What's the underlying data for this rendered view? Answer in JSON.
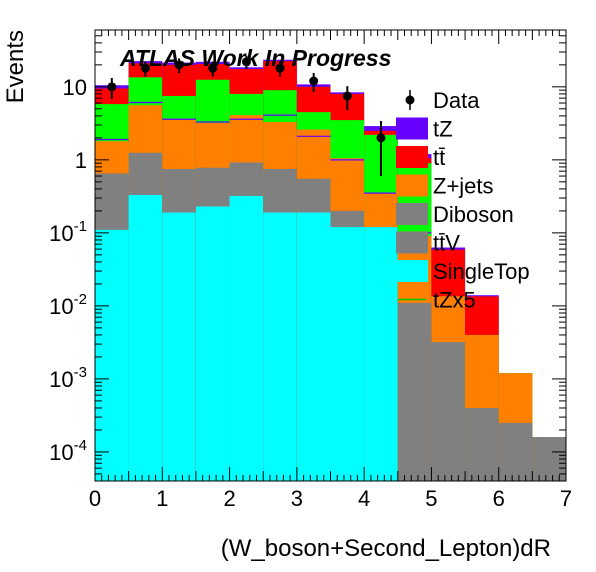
{
  "chart_data": {
    "type": "bar",
    "stacked": true,
    "title": "",
    "annotation": "ATLAS Work In Progress",
    "xlabel": "(W_boson+Second_Lepton)dR",
    "ylabel": "Events",
    "xlim": [
      0,
      7
    ],
    "ylim": [
      4e-05,
      60
    ],
    "yscale": "log",
    "x_ticks": [
      "0",
      "1",
      "2",
      "3",
      "4",
      "5",
      "6",
      "7"
    ],
    "y_ticks": [
      {
        "value": 0.0001,
        "base": "10",
        "exp": "-4"
      },
      {
        "value": 0.001,
        "base": "10",
        "exp": "-3"
      },
      {
        "value": 0.01,
        "base": "10",
        "exp": "-2"
      },
      {
        "value": 0.1,
        "base": "10",
        "exp": "-1"
      },
      {
        "value": 1,
        "base": "1",
        "exp": ""
      },
      {
        "value": 10,
        "base": "10",
        "exp": ""
      }
    ],
    "bin_edges": [
      0,
      0.5,
      1,
      1.5,
      2,
      2.5,
      3,
      3.5,
      4,
      4.5,
      5,
      5.5,
      6,
      6.5,
      7
    ],
    "stack_order": [
      "SingleTop",
      "ttV",
      "Diboson",
      "Z+jets",
      "tt",
      "tZ"
    ],
    "series": [
      {
        "key": "SingleTop",
        "color": "#00ffff",
        "cumulative": [
          0.11,
          0.33,
          0.19,
          0.23,
          0.32,
          0.19,
          0.19,
          0.12,
          0.12,
          1e-05,
          1e-05,
          1e-05,
          1e-05,
          1e-05
        ]
      },
      {
        "key": "ttV",
        "color": "#7f7f7f",
        "cumulative": [
          0.11,
          0.33,
          0.19,
          0.23,
          0.32,
          0.19,
          0.19,
          0.12,
          0.12,
          1e-05,
          1e-05,
          1e-05,
          1e-05,
          1e-05
        ]
      },
      {
        "key": "Diboson",
        "color": "#808080",
        "cumulative": [
          0.65,
          1.25,
          0.75,
          0.78,
          0.92,
          0.75,
          0.55,
          0.2,
          0.085,
          0.011,
          0.0032,
          0.0004,
          0.00025,
          0.00016
        ]
      },
      {
        "key": "Z+jets",
        "color": "#ff7f00",
        "cumulative": [
          1.8,
          5.6,
          3.6,
          3.2,
          4.1,
          3.3,
          2.6,
          1.05,
          0.35,
          0.09,
          0.0135,
          0.004,
          0.0012,
          0.00016
        ]
      },
      {
        "key": "Z+jets top",
        "color": "#00ff00",
        "cumulative": [
          5.8,
          13.5,
          7.5,
          12.5,
          8,
          9,
          4.5,
          3.5,
          2.2,
          0.9,
          0.0135,
          0.004,
          0.0012,
          0.00016
        ]
      },
      {
        "key": "tt",
        "color": "#ff0000",
        "cumulative": [
          9.5,
          21,
          20,
          20.5,
          17.5,
          22.5,
          10,
          8,
          2.5,
          1.05,
          0.06,
          0.0135,
          0.0012,
          0.00016
        ]
      },
      {
        "key": "tZ",
        "color": "#6600ff",
        "cumulative": [
          10.5,
          22.5,
          21.5,
          22,
          18.5,
          23.5,
          10.8,
          8.4,
          2.9,
          1.2,
          0.063,
          0.014,
          0.0012,
          0.00016
        ]
      }
    ],
    "tZx5": {
      "color": "#00cc00",
      "values": [
        1.9,
        6.1,
        3.6,
        3.3,
        3.6,
        4.1,
        2.1,
        1.0,
        0.35,
        0.1,
        0.06,
        0.0,
        0.0,
        0.0
      ]
    },
    "data_points": [
      {
        "x": 0.25,
        "y": 10,
        "err": 3.2
      },
      {
        "x": 0.75,
        "y": 18,
        "err": 4.2
      },
      {
        "x": 1.25,
        "y": 20,
        "err": 4.5
      },
      {
        "x": 1.75,
        "y": 18,
        "err": 4.2
      },
      {
        "x": 2.25,
        "y": 22,
        "err": 4.7
      },
      {
        "x": 2.75,
        "y": 18,
        "err": 4.2
      },
      {
        "x": 3.25,
        "y": 12,
        "err": 3.5
      },
      {
        "x": 3.75,
        "y": 7.5,
        "err": 2.7
      },
      {
        "x": 4.25,
        "y": 2,
        "err": 1.4
      }
    ],
    "legend": {
      "placement": "right",
      "entries": [
        {
          "label": "Data",
          "kind": "marker",
          "color": "#000000"
        },
        {
          "label": "tZ",
          "kind": "box",
          "color": "#6600ff"
        },
        {
          "label": "tt̄",
          "kind": "box",
          "color": "#ff0000"
        },
        {
          "label": "Z+jets",
          "kind": "box",
          "color": "#ff7f00"
        },
        {
          "label": "Diboson",
          "kind": "box",
          "color": "#808080"
        },
        {
          "label": "tt̄V",
          "kind": "box",
          "color": "#7f7f7f"
        },
        {
          "label": "SingleTop",
          "kind": "box",
          "color": "#00ffff"
        },
        {
          "label": "tZx5",
          "kind": "line",
          "color": "#00cc00"
        }
      ]
    }
  }
}
